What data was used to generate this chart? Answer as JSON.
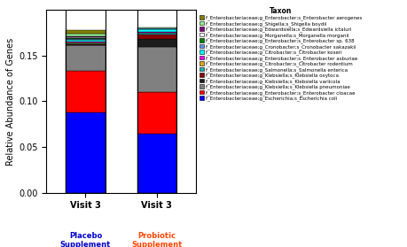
{
  "legend_labels": [
    "f_Enterobacteriaceae;g_Enterobacter;s_Enterobacter aerogenes",
    "f_Enterobacteriaceae;g_Shigella;s_Shigella boydii",
    "f_Enterobacteriaceae;g_Edwardsiella;s_Edwardsiella ictaluri",
    "f_Enterobacteriaceae;g_Morganella;s_Morganella morganii",
    "f_Enterobacteriaceae;g_Enterobacter;s_Enterobacter sp. 638",
    "f_Enterobacteriaceae;g_Cronobacter;s_Cronobacter sakazakii",
    "f_Enterobacteriaceae;g_Citrobacter;s_Citrobacter koseri",
    "f_Enterobacteriaceae;g_Enterobacter;s_Enterobacter asburiae",
    "f_Enterobacteriaceae;g_Citrobacter;s_Citrobacter rodentium",
    "f_Enterobacteriaceae;g_Salmonella;s_Salmonella enterica",
    "f_Enterobacteriaceae;g_Klebsiella;s_Klebsiella oxytoca",
    "f_Enterobacteriaceae;g_Klebsiella;s_Klebsiella variicola",
    "f_Enterobacteriaceae;g_Klebsiella;s_Klebsiella pneumoniae",
    "f_Enterobacteriaceae;g_Enterobacter;s_Enterobacter cloacae",
    "f_Enterobacteriaceae;g_Escherichia;s_Escherichia coli"
  ],
  "legend_colors": [
    "#808000",
    "#90EE90",
    "#800080",
    "#F5F5F5",
    "#008000",
    "#6495ED",
    "#00FFFF",
    "#FF00FF",
    "#DAA520",
    "#20B2AA",
    "#8B0000",
    "#1C1C1C",
    "#808080",
    "#FF0000",
    "#0000FF"
  ],
  "placebo_vals": [
    0.004,
    0.003,
    0.0008,
    0.0008,
    0.001,
    0.001,
    0.002,
    0.001,
    0.001,
    0.001,
    0.001,
    0.0005,
    0.028,
    0.045,
    0.088
  ],
  "probiotic_vals": [
    0.0,
    0.001,
    0.0,
    0.0,
    0.0,
    0.001,
    0.003,
    0.0005,
    0.0005,
    0.002,
    0.005,
    0.008,
    0.05,
    0.045,
    0.065
  ],
  "ylabel": "Relative Abundance of Genes",
  "ylim": [
    0.0,
    0.2
  ],
  "yticks": [
    0.0,
    0.05,
    0.1,
    0.15
  ],
  "legend_title": "Taxon",
  "bar_width": 0.55,
  "sub_label_colors": [
    "#0000CD",
    "#FF4500"
  ],
  "figsize": [
    4.6,
    2.79
  ],
  "dpi": 100
}
